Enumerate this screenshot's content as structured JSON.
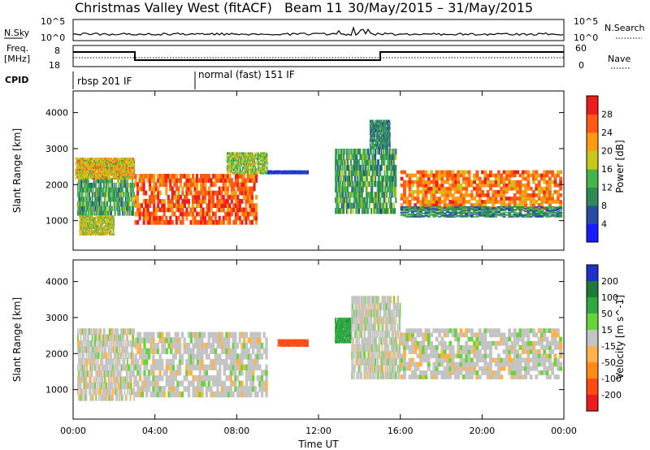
{
  "header": {
    "station": "Christmas Valley West (fitACF)",
    "beam_label": "Beam 11",
    "date_range": "30/May/2015 – 31/May/2015"
  },
  "panels": {
    "nsky": {
      "label": "N.Sky",
      "left_ticks": [
        "10^5",
        "10^0"
      ],
      "right_ticks": [
        "10^5",
        "10^0"
      ],
      "right_label": "N.Search"
    },
    "freq": {
      "label_line1": "Freq.",
      "label_line2": "[MHz]",
      "left_ticks": [
        "8",
        "18"
      ],
      "right_ticks": [
        "60",
        "0"
      ],
      "right_label": "Nave"
    },
    "cpid": {
      "label": "CPID",
      "segments": [
        "rbsp 201 IF",
        "normal (fast) 151 IF"
      ]
    }
  },
  "colors": {
    "power": [
      "#1a1aff",
      "#2a4aa8",
      "#2e8b57",
      "#46b34b",
      "#c8c819",
      "#ff9a14",
      "#ff5a14",
      "#ee1d1d"
    ],
    "velocity": [
      "#2030c8",
      "#1f7a3a",
      "#2eaa40",
      "#66d43a",
      "#c4c4c4",
      "#ffb24a",
      "#ff8a18",
      "#ff4a14",
      "#ee1d1d"
    ]
  },
  "chart_data": [
    {
      "type": "heatmap",
      "name": "power",
      "ylabel": "Slant Range [km]",
      "xlabel": "Time UT",
      "x_ticks": [
        "00:00",
        "04:00",
        "08:00",
        "12:00",
        "16:00",
        "20:00",
        "00:00"
      ],
      "xlim_hours": [
        0,
        24
      ],
      "y_ticks": [
        1000,
        2000,
        3000,
        4000
      ],
      "ylim": [
        180,
        4600
      ],
      "colorbar": {
        "label": "Power [dB]",
        "ticks": [
          4,
          8,
          12,
          16,
          20,
          24,
          28
        ]
      },
      "bands": [
        {
          "t": [
            0.2,
            3.0
          ],
          "r0": 1150,
          "r1": 2700,
          "value": 14
        },
        {
          "t": [
            0.1,
            3.0
          ],
          "r0": 2150,
          "r1": 2750,
          "value": 22
        },
        {
          "t": [
            0.3,
            2.0
          ],
          "r0": 600,
          "r1": 1150,
          "value": 20
        },
        {
          "t": [
            3.0,
            9.0
          ],
          "r0": 900,
          "r1": 2300,
          "value": 28
        },
        {
          "t": [
            7.5,
            9.5
          ],
          "r0": 2300,
          "r1": 2900,
          "value": 18
        },
        {
          "t": [
            9.5,
            11.5
          ],
          "r0": 2300,
          "r1": 2400,
          "value": 6
        },
        {
          "t": [
            12.8,
            15.8
          ],
          "r0": 1200,
          "r1": 3000,
          "value": 14
        },
        {
          "t": [
            14.5,
            15.5
          ],
          "r0": 3000,
          "r1": 3800,
          "value": 12
        },
        {
          "t": [
            16.0,
            23.9
          ],
          "r0": 1300,
          "r1": 2400,
          "value": 26
        },
        {
          "t": [
            16.0,
            23.9
          ],
          "r0": 1100,
          "r1": 1400,
          "value": 12
        }
      ]
    },
    {
      "type": "heatmap",
      "name": "velocity",
      "ylabel": "Slant Range [km]",
      "xlabel": "Time UT",
      "x_ticks": [
        "00:00",
        "04:00",
        "08:00",
        "12:00",
        "16:00",
        "20:00",
        "00:00"
      ],
      "xlim_hours": [
        0,
        24
      ],
      "y_ticks": [
        1000,
        2000,
        3000,
        4000
      ],
      "ylim": [
        180,
        4600
      ],
      "colorbar": {
        "label": "Velocity [m s^-1]",
        "ticks": [
          200,
          100,
          50,
          15,
          -15,
          -50,
          -100,
          -200
        ]
      },
      "bands": [
        {
          "t": [
            0.2,
            3.0
          ],
          "r0": 700,
          "r1": 2700,
          "value": 0
        },
        {
          "t": [
            3.0,
            9.5
          ],
          "r0": 800,
          "r1": 2600,
          "value": 0
        },
        {
          "t": [
            10.0,
            11.5
          ],
          "r0": 2200,
          "r1": 2400,
          "value": -120
        },
        {
          "t": [
            12.8,
            13.6
          ],
          "r0": 2300,
          "r1": 3000,
          "value": 60
        },
        {
          "t": [
            13.6,
            16.0
          ],
          "r0": 1300,
          "r1": 3600,
          "value": 0
        },
        {
          "t": [
            16.0,
            23.9
          ],
          "r0": 1300,
          "r1": 2700,
          "value": 0
        }
      ]
    }
  ]
}
